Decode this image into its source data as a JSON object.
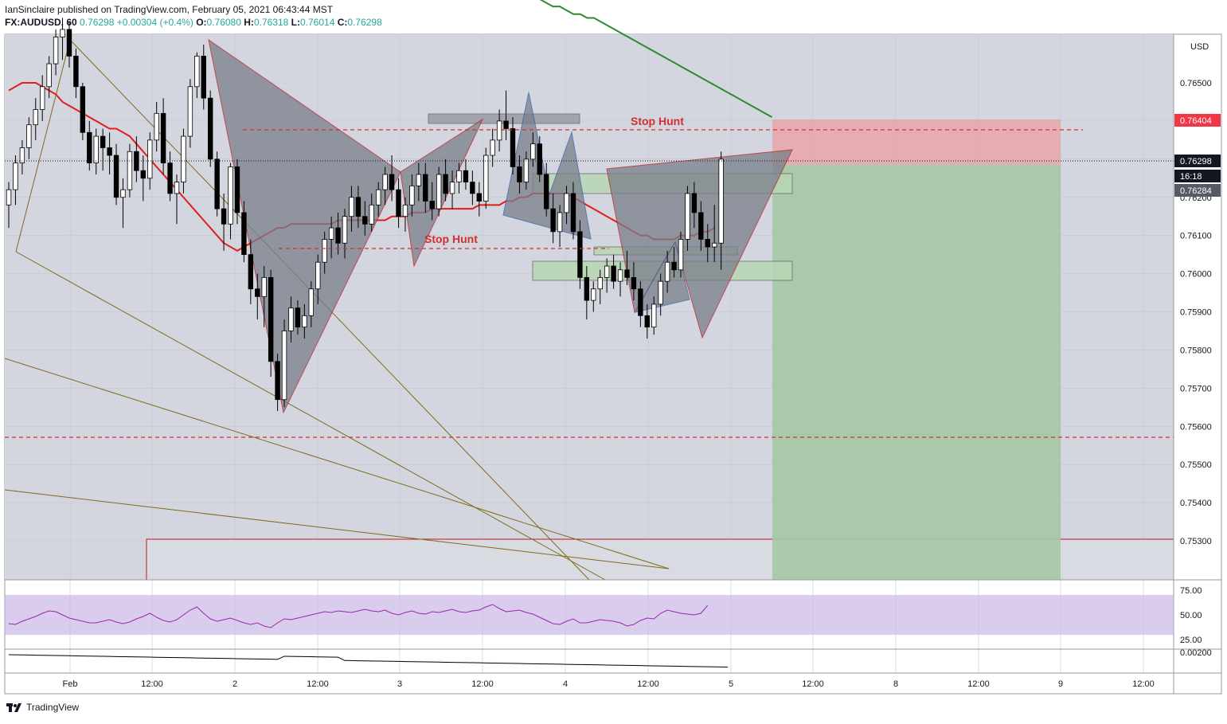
{
  "header": {
    "publisher_line": "IanSinclaire published on TradingView.com, February 05, 2021 06:43:44 MST",
    "symbol": "FX:AUDUSD, 60",
    "last": "0.76298",
    "change": "+0.00304 (+0.4%)",
    "open": "0.76080",
    "high": "0.76318",
    "low": "0.76014",
    "close": "0.76298"
  },
  "footer": {
    "brand": "TradingView"
  },
  "colors": {
    "grid": "#dadde6",
    "bg": "#d1d4dc",
    "bull": "#ffffff",
    "bear": "#000000",
    "ema": "#e31c1c",
    "sma": "#2e8b2e",
    "pattern_red": "#7a7e8a",
    "pattern_blue": "#2f5ea8",
    "stop_red": "#d32f2f",
    "tp_green": "#a5c8a5",
    "sl_red": "#e8a5a9",
    "rsi": "#9c27b0",
    "trendline": "#806a1e"
  },
  "chart_data": {
    "type": "candlestick",
    "symbol": "FX:AUDUSD",
    "interval": "60",
    "currency": "USD",
    "y_ticks": [
      0.765,
      0.764,
      0.763,
      0.762,
      0.761,
      0.76,
      0.759,
      0.758,
      0.757,
      0.756,
      0.755,
      0.754,
      0.753
    ],
    "y_tick_labels": [
      "0.76500",
      "0.76400",
      "0.76300",
      "0.76200",
      "0.76100",
      "0.76000",
      "0.75900",
      "0.75800",
      "0.75700",
      "0.75600",
      "0.75500",
      "0.75400",
      "0.75300"
    ],
    "x_tick_labels": [
      "Feb",
      "12:00",
      "2",
      "12:00",
      "3",
      "12:00",
      "4",
      "12:00",
      "5",
      "12:00",
      "8",
      "12:00",
      "9",
      "12:00"
    ],
    "price_labels": {
      "target": "0.76404",
      "last": "0.76298",
      "countdown": "16:18",
      "ema": "0.76284"
    },
    "annotations": [
      "Stop Hunt",
      "Stop Hunt"
    ],
    "candles": [
      [
        0.7618,
        0.7624,
        0.7612,
        0.7622
      ],
      [
        0.7622,
        0.7631,
        0.7618,
        0.7629
      ],
      [
        0.7629,
        0.7635,
        0.7626,
        0.7633
      ],
      [
        0.7633,
        0.7641,
        0.763,
        0.7639
      ],
      [
        0.7639,
        0.7646,
        0.7635,
        0.7643
      ],
      [
        0.7643,
        0.7652,
        0.764,
        0.7649
      ],
      [
        0.7649,
        0.7657,
        0.7646,
        0.7655
      ],
      [
        0.7655,
        0.7664,
        0.7652,
        0.7662
      ],
      [
        0.7662,
        0.7667,
        0.7656,
        0.7664
      ],
      [
        0.7664,
        0.7666,
        0.7654,
        0.7657
      ],
      [
        0.7657,
        0.7659,
        0.7646,
        0.7649
      ],
      [
        0.7649,
        0.765,
        0.7635,
        0.7637
      ],
      [
        0.7637,
        0.764,
        0.7627,
        0.7629
      ],
      [
        0.7629,
        0.7638,
        0.7626,
        0.7636
      ],
      [
        0.7636,
        0.7638,
        0.7627,
        0.7633
      ],
      [
        0.7633,
        0.7637,
        0.7626,
        0.7631
      ],
      [
        0.7631,
        0.7634,
        0.7618,
        0.762
      ],
      [
        0.762,
        0.7625,
        0.7612,
        0.7622
      ],
      [
        0.7622,
        0.7634,
        0.762,
        0.7632
      ],
      [
        0.7632,
        0.7636,
        0.7624,
        0.7627
      ],
      [
        0.7627,
        0.7631,
        0.7619,
        0.7625
      ],
      [
        0.7625,
        0.7637,
        0.7622,
        0.7635
      ],
      [
        0.7635,
        0.7645,
        0.7632,
        0.7642
      ],
      [
        0.7642,
        0.7646,
        0.7626,
        0.7629
      ],
      [
        0.7629,
        0.7632,
        0.7619,
        0.7621
      ],
      [
        0.7621,
        0.7626,
        0.7613,
        0.7624
      ],
      [
        0.7624,
        0.7638,
        0.7621,
        0.7636
      ],
      [
        0.7636,
        0.7651,
        0.7633,
        0.7649
      ],
      [
        0.7649,
        0.7658,
        0.7646,
        0.7657
      ],
      [
        0.7657,
        0.766,
        0.7643,
        0.7646
      ],
      [
        0.7646,
        0.7648,
        0.7628,
        0.763
      ],
      [
        0.763,
        0.7632,
        0.7615,
        0.7617
      ],
      [
        0.7617,
        0.7621,
        0.7606,
        0.7613
      ],
      [
        0.7613,
        0.7629,
        0.7609,
        0.7628
      ],
      [
        0.7628,
        0.763,
        0.7613,
        0.7616
      ],
      [
        0.7616,
        0.7619,
        0.7603,
        0.7605
      ],
      [
        0.7605,
        0.7609,
        0.7592,
        0.7596
      ],
      [
        0.7596,
        0.76,
        0.7588,
        0.7594
      ],
      [
        0.7594,
        0.7602,
        0.7586,
        0.7599
      ],
      [
        0.7599,
        0.7601,
        0.7573,
        0.7577
      ],
      [
        0.7577,
        0.7579,
        0.7564,
        0.7567
      ],
      [
        0.7567,
        0.7588,
        0.7565,
        0.7585
      ],
      [
        0.7585,
        0.7594,
        0.7582,
        0.7591
      ],
      [
        0.7591,
        0.7593,
        0.7584,
        0.7586
      ],
      [
        0.7586,
        0.7592,
        0.7583,
        0.7589
      ],
      [
        0.7589,
        0.7598,
        0.7586,
        0.7596
      ],
      [
        0.7596,
        0.7605,
        0.7592,
        0.7603
      ],
      [
        0.7603,
        0.7611,
        0.76,
        0.7609
      ],
      [
        0.7609,
        0.7615,
        0.7604,
        0.7612
      ],
      [
        0.7612,
        0.7616,
        0.7605,
        0.7608
      ],
      [
        0.7608,
        0.7617,
        0.7604,
        0.7615
      ],
      [
        0.7615,
        0.7623,
        0.7611,
        0.762
      ],
      [
        0.762,
        0.7623,
        0.7612,
        0.7615
      ],
      [
        0.7615,
        0.7619,
        0.761,
        0.7613
      ],
      [
        0.7613,
        0.7621,
        0.7611,
        0.7618
      ],
      [
        0.7618,
        0.7624,
        0.7615,
        0.7622
      ],
      [
        0.7622,
        0.7628,
        0.7618,
        0.7626
      ],
      [
        0.7626,
        0.7631,
        0.7619,
        0.7622
      ],
      [
        0.7622,
        0.7625,
        0.7612,
        0.7615
      ],
      [
        0.7615,
        0.762,
        0.7611,
        0.7618
      ],
      [
        0.7618,
        0.7626,
        0.7615,
        0.7623
      ],
      [
        0.7623,
        0.7629,
        0.7619,
        0.7626
      ],
      [
        0.7626,
        0.7629,
        0.7616,
        0.7619
      ],
      [
        0.7619,
        0.7624,
        0.7614,
        0.7617
      ],
      [
        0.7617,
        0.7628,
        0.7615,
        0.7626
      ],
      [
        0.7626,
        0.763,
        0.7619,
        0.7621
      ],
      [
        0.7621,
        0.7627,
        0.7617,
        0.7624
      ],
      [
        0.7624,
        0.7629,
        0.7621,
        0.7627
      ],
      [
        0.7627,
        0.763,
        0.7622,
        0.7624
      ],
      [
        0.7624,
        0.7627,
        0.7618,
        0.7621
      ],
      [
        0.7621,
        0.7624,
        0.7615,
        0.7619
      ],
      [
        0.7619,
        0.7633,
        0.7617,
        0.7631
      ],
      [
        0.7631,
        0.7638,
        0.7628,
        0.7635
      ],
      [
        0.7635,
        0.7643,
        0.7632,
        0.764
      ],
      [
        0.764,
        0.7648,
        0.7635,
        0.7638
      ],
      [
        0.7638,
        0.7641,
        0.7626,
        0.7628
      ],
      [
        0.7628,
        0.7631,
        0.7621,
        0.7624
      ],
      [
        0.7624,
        0.7632,
        0.7622,
        0.763
      ],
      [
        0.763,
        0.7637,
        0.7628,
        0.7634
      ],
      [
        0.7634,
        0.7636,
        0.7624,
        0.7626
      ],
      [
        0.7626,
        0.7629,
        0.7615,
        0.7617
      ],
      [
        0.7617,
        0.7621,
        0.7608,
        0.7611
      ],
      [
        0.7611,
        0.7618,
        0.7607,
        0.7616
      ],
      [
        0.7616,
        0.7623,
        0.7613,
        0.7621
      ],
      [
        0.7621,
        0.7624,
        0.7609,
        0.7611
      ],
      [
        0.7611,
        0.7614,
        0.7596,
        0.7599
      ],
      [
        0.7599,
        0.7602,
        0.7588,
        0.7593
      ],
      [
        0.7593,
        0.7598,
        0.759,
        0.7596
      ],
      [
        0.7596,
        0.7601,
        0.7592,
        0.7599
      ],
      [
        0.7599,
        0.7604,
        0.7595,
        0.7602
      ],
      [
        0.7602,
        0.7605,
        0.7596,
        0.7598
      ],
      [
        0.7598,
        0.7603,
        0.7594,
        0.7601
      ],
      [
        0.7601,
        0.7606,
        0.7597,
        0.7599
      ],
      [
        0.7599,
        0.7603,
        0.7593,
        0.7596
      ],
      [
        0.7596,
        0.7598,
        0.7586,
        0.7589
      ],
      [
        0.7589,
        0.7592,
        0.7583,
        0.7586
      ],
      [
        0.7586,
        0.7594,
        0.7584,
        0.7592
      ],
      [
        0.7592,
        0.76,
        0.7589,
        0.7598
      ],
      [
        0.7598,
        0.7606,
        0.7595,
        0.7603
      ],
      [
        0.7603,
        0.7607,
        0.7599,
        0.7601
      ],
      [
        0.7601,
        0.7611,
        0.7599,
        0.7609
      ],
      [
        0.7609,
        0.7623,
        0.7606,
        0.7621
      ],
      [
        0.7621,
        0.7624,
        0.7612,
        0.7616
      ],
      [
        0.7616,
        0.7619,
        0.7606,
        0.7609
      ],
      [
        0.7609,
        0.7613,
        0.7603,
        0.7607
      ],
      [
        0.7607,
        0.7618,
        0.7603,
        0.7608
      ],
      [
        0.7608,
        0.7632,
        0.7601,
        0.763
      ]
    ],
    "ema_series": [
      0.7648,
      0.7649,
      0.765,
      0.765,
      0.765,
      0.7649,
      0.7648,
      0.7647,
      0.7645,
      0.7644,
      0.7643,
      0.7642,
      0.7641,
      0.764,
      0.7639,
      0.7638,
      0.7638,
      0.7637,
      0.7636,
      0.7634,
      0.7632,
      0.763,
      0.7628,
      0.7626,
      0.7624,
      0.7622,
      0.762,
      0.7618,
      0.7616,
      0.7614,
      0.7612,
      0.761,
      0.7608,
      0.7607,
      0.7606,
      0.7607,
      0.7608,
      0.7609,
      0.761,
      0.7611,
      0.7612,
      0.7612,
      0.7613,
      0.7613,
      0.7613,
      0.7613,
      0.7613,
      0.7613,
      0.7613,
      0.7614,
      0.7614,
      0.7614,
      0.7614,
      0.7614,
      0.7614,
      0.7614,
      0.7614,
      0.7615,
      0.7615,
      0.7615,
      0.7616,
      0.7616,
      0.7616,
      0.7617,
      0.7617,
      0.7617,
      0.7617,
      0.7617,
      0.7617,
      0.7617,
      0.7618,
      0.7618,
      0.7618,
      0.7618,
      0.7619,
      0.7619,
      0.762,
      0.762,
      0.7621,
      0.7621,
      0.7621,
      0.7621,
      0.7621,
      0.7621,
      0.762,
      0.7619,
      0.7618,
      0.7617,
      0.7616,
      0.7615,
      0.7614,
      0.7613,
      0.7612,
      0.7611,
      0.761,
      0.761,
      0.7609,
      0.7609,
      0.7609,
      0.7609,
      0.761,
      0.761,
      0.761,
      0.7611,
      0.7611,
      0.7612
    ],
    "sma_series": [
      0.7674,
      0.7673,
      0.7672,
      0.7671,
      0.767,
      0.767,
      0.7669,
      0.7668,
      0.7668,
      0.7667,
      0.7667,
      0.7666,
      0.7665,
      0.7664,
      0.7663,
      0.7662,
      0.7661,
      0.766,
      0.7659,
      0.7658,
      0.7657,
      0.7656,
      0.7655,
      0.7654,
      0.7653,
      0.7652,
      0.7651,
      0.765,
      0.7649,
      0.7648,
      0.7647,
      0.7646,
      0.7645,
      0.7644,
      0.7643,
      0.7642,
      0.7641
    ],
    "rsi": {
      "ticks": [
        "75.00",
        "50.00",
        "25.00"
      ],
      "values": [
        39,
        38,
        42,
        45,
        48,
        52,
        55,
        54,
        50,
        46,
        44,
        42,
        40,
        40,
        42,
        44,
        41,
        39,
        41,
        45,
        48,
        52,
        47,
        43,
        41,
        44,
        50,
        56,
        60,
        52,
        45,
        42,
        44,
        46,
        43,
        40,
        38,
        40,
        36,
        34,
        40,
        45,
        44,
        46,
        48,
        50,
        52,
        54,
        53,
        55,
        54,
        53,
        55,
        57,
        55,
        54,
        56,
        52,
        50,
        53,
        55,
        52,
        51,
        54,
        53,
        55,
        57,
        54,
        53,
        55,
        56,
        60,
        63,
        58,
        54,
        55,
        56,
        53,
        51,
        47,
        43,
        39,
        38,
        42,
        45,
        40,
        40,
        42,
        44,
        43,
        42,
        40,
        36,
        38,
        43,
        46,
        45,
        52,
        56,
        54,
        52,
        51,
        50,
        52,
        62
      ]
    },
    "lower_osc_tick": "0.00200"
  }
}
